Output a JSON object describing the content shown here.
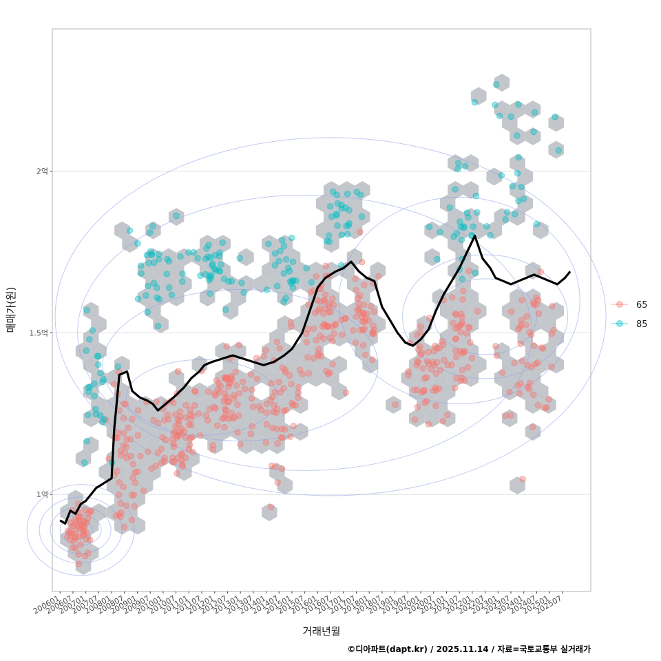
{
  "chart_data": {
    "type": "scatter",
    "title": "",
    "xlabel": "거래년월",
    "ylabel": "매매가(원)",
    "caption": "©디아파트(dapt.kr) / 2025.11.14 / 자료=국토교통부 실거래가",
    "x_range": [
      2005.7,
      2026.6
    ],
    "y_range": [
      0.7,
      2.44
    ],
    "x_ticks": [
      "200601",
      "200607",
      "200701",
      "200707",
      "200801",
      "200807",
      "200901",
      "200907",
      "201001",
      "201007",
      "201101",
      "201107",
      "201201",
      "201207",
      "201301",
      "201307",
      "201401",
      "201407",
      "201501",
      "201507",
      "201601",
      "201607",
      "201701",
      "201707",
      "201801",
      "201807",
      "201901",
      "201907",
      "202001",
      "202007",
      "202101",
      "202107",
      "202201",
      "202207",
      "202301",
      "202307",
      "202401",
      "202407",
      "202501",
      "202507"
    ],
    "y_ticks": [
      {
        "value": 1.0,
        "label": "1억"
      },
      {
        "value": 1.5,
        "label": "1.5억"
      },
      {
        "value": 2.0,
        "label": "2억"
      }
    ],
    "legend": [
      {
        "name": "65",
        "color": "#F8766D"
      },
      {
        "name": "85",
        "color": "#00BFC4"
      }
    ],
    "legend_position": "right",
    "series": [
      {
        "name": "trend",
        "type": "line",
        "color": "#000000",
        "points": [
          [
            2006.0,
            0.92
          ],
          [
            2006.2,
            0.91
          ],
          [
            2006.4,
            0.95
          ],
          [
            2006.6,
            0.94
          ],
          [
            2006.8,
            0.97
          ],
          [
            2007.0,
            0.98
          ],
          [
            2007.2,
            1.0
          ],
          [
            2007.4,
            1.02
          ],
          [
            2007.6,
            1.03
          ],
          [
            2007.8,
            1.04
          ],
          [
            2008.0,
            1.05
          ],
          [
            2008.1,
            1.2
          ],
          [
            2008.3,
            1.37
          ],
          [
            2008.6,
            1.38
          ],
          [
            2008.8,
            1.32
          ],
          [
            2009.1,
            1.3
          ],
          [
            2009.4,
            1.29
          ],
          [
            2009.6,
            1.28
          ],
          [
            2009.8,
            1.26
          ],
          [
            2010.1,
            1.28
          ],
          [
            2010.4,
            1.3
          ],
          [
            2010.8,
            1.33
          ],
          [
            2011.1,
            1.36
          ],
          [
            2011.4,
            1.38
          ],
          [
            2011.6,
            1.4
          ],
          [
            2011.9,
            1.41
          ],
          [
            2012.3,
            1.42
          ],
          [
            2012.7,
            1.43
          ],
          [
            2013.1,
            1.42
          ],
          [
            2013.5,
            1.41
          ],
          [
            2013.9,
            1.4
          ],
          [
            2014.3,
            1.41
          ],
          [
            2014.7,
            1.43
          ],
          [
            2015.0,
            1.45
          ],
          [
            2015.4,
            1.5
          ],
          [
            2015.7,
            1.57
          ],
          [
            2016.0,
            1.64
          ],
          [
            2016.3,
            1.67
          ],
          [
            2016.7,
            1.69
          ],
          [
            2017.0,
            1.7
          ],
          [
            2017.3,
            1.72
          ],
          [
            2017.6,
            1.69
          ],
          [
            2017.9,
            1.67
          ],
          [
            2018.2,
            1.66
          ],
          [
            2018.5,
            1.58
          ],
          [
            2018.8,
            1.54
          ],
          [
            2019.1,
            1.5
          ],
          [
            2019.4,
            1.47
          ],
          [
            2019.7,
            1.46
          ],
          [
            2020.0,
            1.48
          ],
          [
            2020.3,
            1.51
          ],
          [
            2020.6,
            1.57
          ],
          [
            2020.9,
            1.62
          ],
          [
            2021.2,
            1.66
          ],
          [
            2021.5,
            1.7
          ],
          [
            2021.8,
            1.75
          ],
          [
            2022.1,
            1.8
          ],
          [
            2022.4,
            1.73
          ],
          [
            2022.7,
            1.7
          ],
          [
            2022.9,
            1.67
          ],
          [
            2023.2,
            1.66
          ],
          [
            2023.5,
            1.65
          ],
          [
            2023.8,
            1.66
          ],
          [
            2024.1,
            1.67
          ],
          [
            2024.4,
            1.68
          ],
          [
            2024.7,
            1.67
          ],
          [
            2025.0,
            1.66
          ],
          [
            2025.3,
            1.65
          ],
          [
            2025.6,
            1.67
          ],
          [
            2025.8,
            1.69
          ]
        ]
      },
      {
        "name": "65",
        "type": "scatter",
        "color": "#F8766D",
        "clusters": [
          {
            "x": 2006.8,
            "y": 0.89,
            "sx": 0.5,
            "sy": 0.04,
            "n": 50
          },
          {
            "x": 2008.5,
            "y": 1.08,
            "sx": 0.7,
            "sy": 0.12,
            "n": 50
          },
          {
            "x": 2010.5,
            "y": 1.2,
            "sx": 1.0,
            "sy": 0.08,
            "n": 70
          },
          {
            "x": 2012.5,
            "y": 1.3,
            "sx": 1.1,
            "sy": 0.07,
            "n": 70
          },
          {
            "x": 2014.6,
            "y": 1.3,
            "sx": 0.8,
            "sy": 0.1,
            "n": 50
          },
          {
            "x": 2016.2,
            "y": 1.52,
            "sx": 0.8,
            "sy": 0.08,
            "n": 60
          },
          {
            "x": 2017.8,
            "y": 1.55,
            "sx": 0.7,
            "sy": 0.08,
            "n": 40
          },
          {
            "x": 2020.2,
            "y": 1.35,
            "sx": 0.9,
            "sy": 0.08,
            "n": 50
          },
          {
            "x": 2021.6,
            "y": 1.5,
            "sx": 0.5,
            "sy": 0.1,
            "n": 40
          },
          {
            "x": 2024.3,
            "y": 1.45,
            "sx": 1.2,
            "sy": 0.1,
            "n": 50
          }
        ]
      },
      {
        "name": "85",
        "type": "scatter",
        "color": "#00BFC4",
        "clusters": [
          {
            "x": 2007.3,
            "y": 1.3,
            "sx": 0.6,
            "sy": 0.12,
            "n": 25
          },
          {
            "x": 2009.5,
            "y": 1.7,
            "sx": 1.0,
            "sy": 0.08,
            "n": 30
          },
          {
            "x": 2012.0,
            "y": 1.68,
            "sx": 1.2,
            "sy": 0.06,
            "n": 35
          },
          {
            "x": 2014.8,
            "y": 1.7,
            "sx": 0.9,
            "sy": 0.07,
            "n": 25
          },
          {
            "x": 2017.0,
            "y": 1.88,
            "sx": 0.9,
            "sy": 0.06,
            "n": 25
          },
          {
            "x": 2021.5,
            "y": 1.8,
            "sx": 0.8,
            "sy": 0.12,
            "n": 25
          },
          {
            "x": 2023.8,
            "y": 2.05,
            "sx": 1.3,
            "sy": 0.15,
            "n": 25
          }
        ]
      }
    ]
  }
}
